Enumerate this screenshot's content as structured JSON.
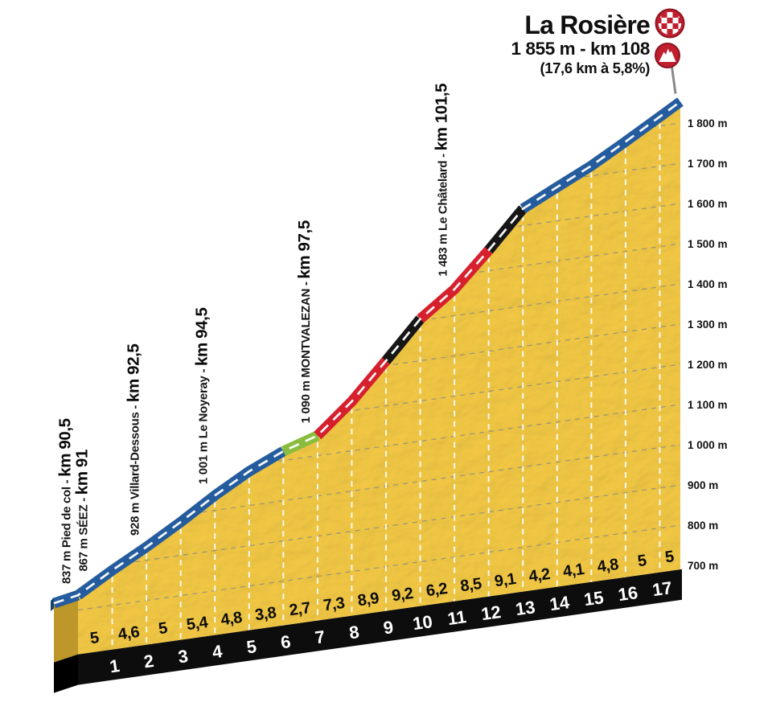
{
  "header": {
    "title": "La Rosière",
    "subtitle": "1 855 m - km 108",
    "detail": "(17,6 km à 5,8%)",
    "finish_icon": "checkered-finish-icon",
    "summit_icon": "mountain-summit-icon"
  },
  "chart_data": {
    "type": "area",
    "title": "La Rosière climb profile",
    "x_unit": "km",
    "y_unit": "m",
    "start": {
      "elevation_m": 837
    },
    "summit": {
      "name": "La Rosière",
      "elevation_m": 1855,
      "stage_km": 108,
      "climb_length_km": 17.6,
      "avg_gradient_pct": 5.8
    },
    "km_tick_labels": [
      "1",
      "2",
      "3",
      "4",
      "5",
      "6",
      "7",
      "8",
      "9",
      "10",
      "11",
      "12",
      "13",
      "14",
      "15",
      "16",
      "17"
    ],
    "segment_gradients_pct": [
      5,
      4.6,
      5,
      5.4,
      4.8,
      3.8,
      2.7,
      7.3,
      8.9,
      9.2,
      6.2,
      8.5,
      9.1,
      4.2,
      4.1,
      4.8,
      5,
      5
    ],
    "segment_gradient_labels": [
      "5",
      "4,6",
      "5",
      "5,4",
      "4,8",
      "3,8",
      "2,7",
      "7,3",
      "8,9",
      "9,2",
      "6,2",
      "8,5",
      "9,1",
      "4,2",
      "4,1",
      "4,8",
      "5",
      "5"
    ],
    "segment_colors": [
      "blue",
      "blue",
      "blue",
      "blue",
      "blue",
      "blue",
      "green",
      "red",
      "red",
      "black",
      "red",
      "red",
      "black",
      "blue",
      "blue",
      "blue",
      "blue",
      "blue"
    ],
    "y_axis": {
      "labels": [
        "1 800 m",
        "1 700 m",
        "1 600 m",
        "1 500 m",
        "1 400 m",
        "1 300 m",
        "1 200 m",
        "1 100 m",
        "1 000 m",
        "900 m",
        "800 m",
        "700 m"
      ],
      "values": [
        1800,
        1700,
        1600,
        1500,
        1400,
        1300,
        1200,
        1100,
        1000,
        900,
        800,
        700
      ]
    },
    "waypoints": [
      {
        "place_label": "837 m Pied de col - ",
        "km_label": "km 90,5",
        "elevation_m": 837,
        "stage_km": 90.5
      },
      {
        "place_label": "867 m SÉEZ - ",
        "km_label": "km 91",
        "elevation_m": 867,
        "stage_km": 91
      },
      {
        "place_label": "928 m Villard-Dessous - ",
        "km_label": "km 92,5",
        "elevation_m": 928,
        "stage_km": 92.5
      },
      {
        "place_label": "1 001 m Le Noyeray - ",
        "km_label": "km 94,5",
        "elevation_m": 1001,
        "stage_km": 94.5
      },
      {
        "place_label": "1 090 m MONTVALEZAN - ",
        "km_label": "km 97,5",
        "elevation_m": 1090,
        "stage_km": 97.5
      },
      {
        "place_label": "1 483 m Le Châtelard - ",
        "km_label": "km 101,5",
        "elevation_m": 1483,
        "stage_km": 101.5
      }
    ],
    "colors": {
      "mountain": "#f2c844",
      "mountain_side": "#bd9729",
      "base_band": "#0d0d0d",
      "road_blue": "#245c9e",
      "road_green": "#8abd3f",
      "road_red": "#d6202e",
      "road_black": "#161616",
      "road_end": "#17406e",
      "centerline": "#ffffff",
      "km_gridline": "#ffffff",
      "elev_gridline": "#8f8f80",
      "icon_red": "#c01f2f",
      "icon_rim": "#8e1422",
      "pole": "#8a8a8a",
      "text": "#101010",
      "km_text": "#ffffff"
    }
  }
}
